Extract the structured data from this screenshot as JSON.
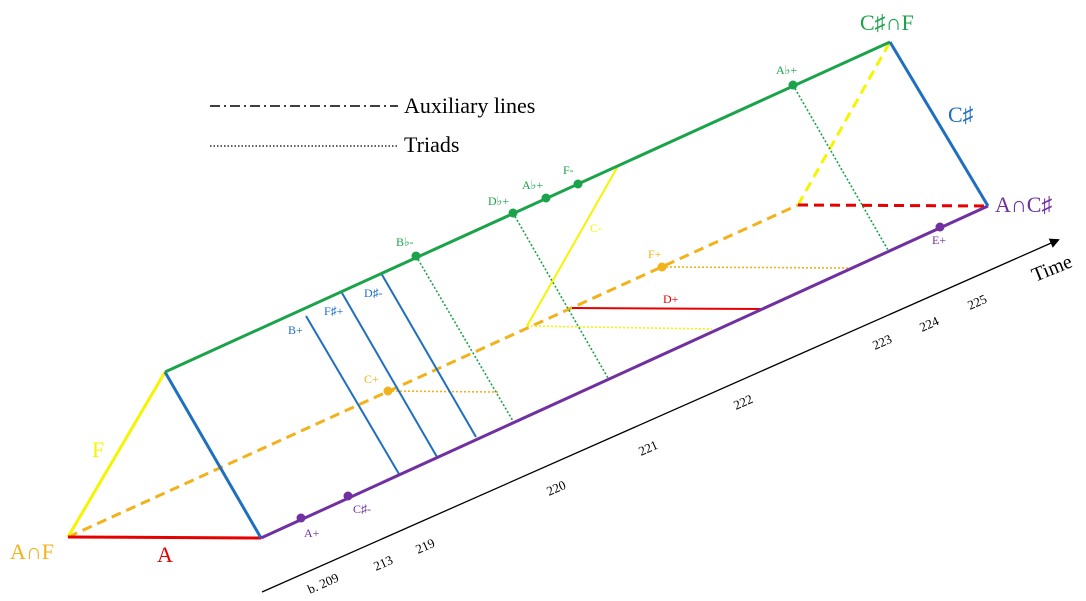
{
  "legend": {
    "auxiliary": "Auxiliary lines",
    "triads": "Triads"
  },
  "vertices": {
    "a_and_f": "A∩F",
    "c_sharp_and_f": "C♯∩F",
    "a_and_c_sharp": "A∩C♯"
  },
  "edges": {
    "f": "F",
    "a": "A",
    "c_sharp": "C♯"
  },
  "triads": {
    "a_plus": "A+",
    "c_sharp_minus": "C♯-",
    "b_plus": "B+",
    "f_sharp_plus": "F♯+",
    "d_sharp_minus": "D♯-",
    "b_flat_minus": "B♭-",
    "d_flat_plus": "D♭+",
    "a_flat_plus_1": "A♭+",
    "f_minus": "F-",
    "c_minus": "C-",
    "c_plus": "C+",
    "f_plus": "F+",
    "d_plus": "D+",
    "a_flat_plus_2": "A♭+",
    "e_plus": "E+"
  },
  "time_axis": {
    "label": "Time",
    "ticks": [
      "b. 209",
      "213",
      "219",
      "220",
      "221",
      "222",
      "223",
      "224",
      "225"
    ]
  },
  "colors": {
    "green": "#1aa34a",
    "purple": "#7030a0",
    "blue": "#1f6fc0",
    "red": "#e60000",
    "yellow": "#f5f500",
    "orange": "#f2b21b",
    "black": "#000000"
  }
}
